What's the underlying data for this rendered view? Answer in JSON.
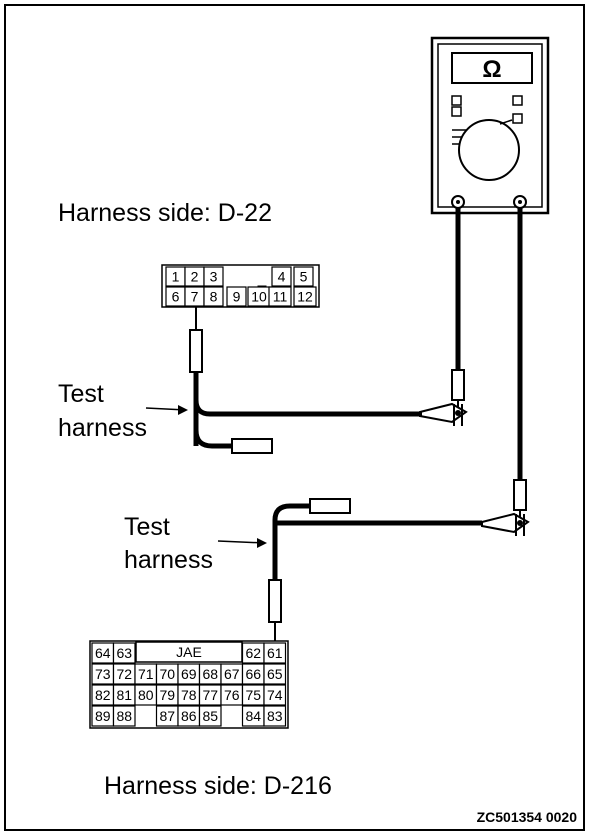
{
  "labels": {
    "harness_side_top": "Harness side: D-22",
    "harness_side_bottom": "Harness side: D-216",
    "test_harness_top": [
      "Test",
      "harness"
    ],
    "test_harness_bottom": [
      "Test",
      "harness"
    ],
    "figure_code": "ZC501354 0020"
  },
  "meter": {
    "symbol": "Ω"
  },
  "connector_d22": {
    "row1": [
      "1",
      "2",
      "3",
      "",
      "4",
      "5"
    ],
    "row2": [
      "6",
      "7",
      "8",
      "9",
      "10",
      "11",
      "12"
    ]
  },
  "connector_d216": {
    "brand": "JAE",
    "row1_left": [
      "64",
      "63"
    ],
    "row1_right": [
      "62",
      "61"
    ],
    "row2": [
      "73",
      "72",
      "71",
      "70",
      "69",
      "68",
      "67",
      "66",
      "65"
    ],
    "row3": [
      "82",
      "81",
      "80",
      "79",
      "78",
      "77",
      "76",
      "75",
      "74"
    ],
    "row4_left": [
      "89",
      "88"
    ],
    "row4_mid": [
      "87",
      "86",
      "85"
    ],
    "row4_right": [
      "84",
      "83"
    ]
  }
}
